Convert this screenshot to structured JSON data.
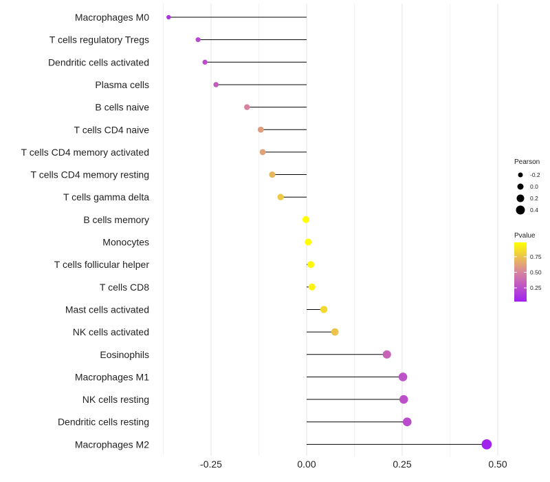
{
  "chart_data": {
    "type": "lollipop",
    "title": "",
    "xlabel": "",
    "ylabel": "",
    "xlim": [
      -0.375,
      0.53
    ],
    "xticks": [
      -0.25,
      0.0,
      0.25,
      0.5
    ],
    "xtick_labels": [
      "-0.25",
      "0.00",
      "0.25",
      "0.50"
    ],
    "categories": [
      "Macrophages M0",
      "T cells regulatory  Tregs",
      "Dendritic cells activated",
      "Plasma cells",
      "B cells naive",
      "T cells CD4 naive",
      "T cells CD4 memory activated",
      "T cells CD4 memory resting",
      "T cells gamma delta",
      "B cells memory",
      "Monocytes",
      "T cells follicular helper",
      "T cells CD8",
      "Mast cells activated",
      "NK cells activated",
      "Eosinophils",
      "Macrophages M1",
      "NK cells resting",
      "Dendritic cells resting",
      "Macrophages M2"
    ],
    "pearson": [
      -0.361,
      -0.284,
      -0.266,
      -0.237,
      -0.156,
      -0.12,
      -0.115,
      -0.09,
      -0.068,
      -0.002,
      0.004,
      0.011,
      0.014,
      0.045,
      0.074,
      0.21,
      0.252,
      0.254,
      0.263,
      0.471
    ],
    "pvalue": [
      0.12,
      0.22,
      0.25,
      0.32,
      0.5,
      0.6,
      0.62,
      0.7,
      0.77,
      0.99,
      0.98,
      0.95,
      0.93,
      0.83,
      0.75,
      0.35,
      0.27,
      0.26,
      0.24,
      0.04
    ],
    "legend_size": {
      "title": "Pearson",
      "values": [
        -0.2,
        0.0,
        0.2,
        0.4
      ],
      "labels": [
        "-0.2",
        "0.0",
        "0.2",
        "0.4"
      ]
    },
    "legend_color": {
      "title": "Pvalue",
      "range": [
        0.03,
        0.98
      ],
      "ticks": [
        0.25,
        0.5,
        0.75
      ],
      "labels": [
        "0.25",
        "0.50",
        "0.75"
      ],
      "low": "#A020F0",
      "mid": "#D8849E",
      "high": "#FFFF00"
    },
    "legend_placement": "right",
    "grid": true
  }
}
